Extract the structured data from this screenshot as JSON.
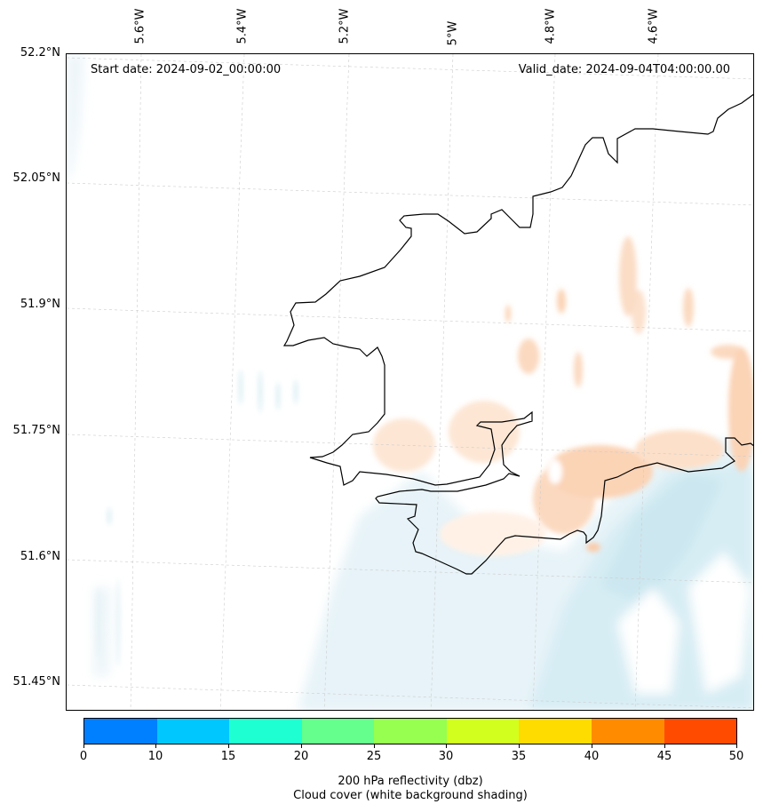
{
  "map": {
    "start_date": "Start date: 2024-09-02_00:00:00",
    "valid_date": "Valid_date: 2024-09-04T04:00:00.00",
    "longitude_labels": [
      "5.6°W",
      "5.4°W",
      "5.2°W",
      "5°W",
      "4.8°W",
      "4.6°W"
    ],
    "latitude_labels": [
      "52.2°N",
      "52.05°N",
      "51.9°N",
      "51.75°N",
      "51.6°N",
      "51.45°N"
    ]
  },
  "colorbar": {
    "ticks": [
      "0",
      "10",
      "15",
      "20",
      "25",
      "30",
      "35",
      "40",
      "45",
      "50"
    ],
    "colors": [
      "#0080ff",
      "#00c8ff",
      "#1effd2",
      "#64ff8c",
      "#96ff50",
      "#d2ff1e",
      "#ffdc00",
      "#ff8c00",
      "#ff4b00"
    ],
    "label_line1": "200 hPa reflectivity (dbz)",
    "label_line2": "Cloud cover (white background shading)"
  }
}
